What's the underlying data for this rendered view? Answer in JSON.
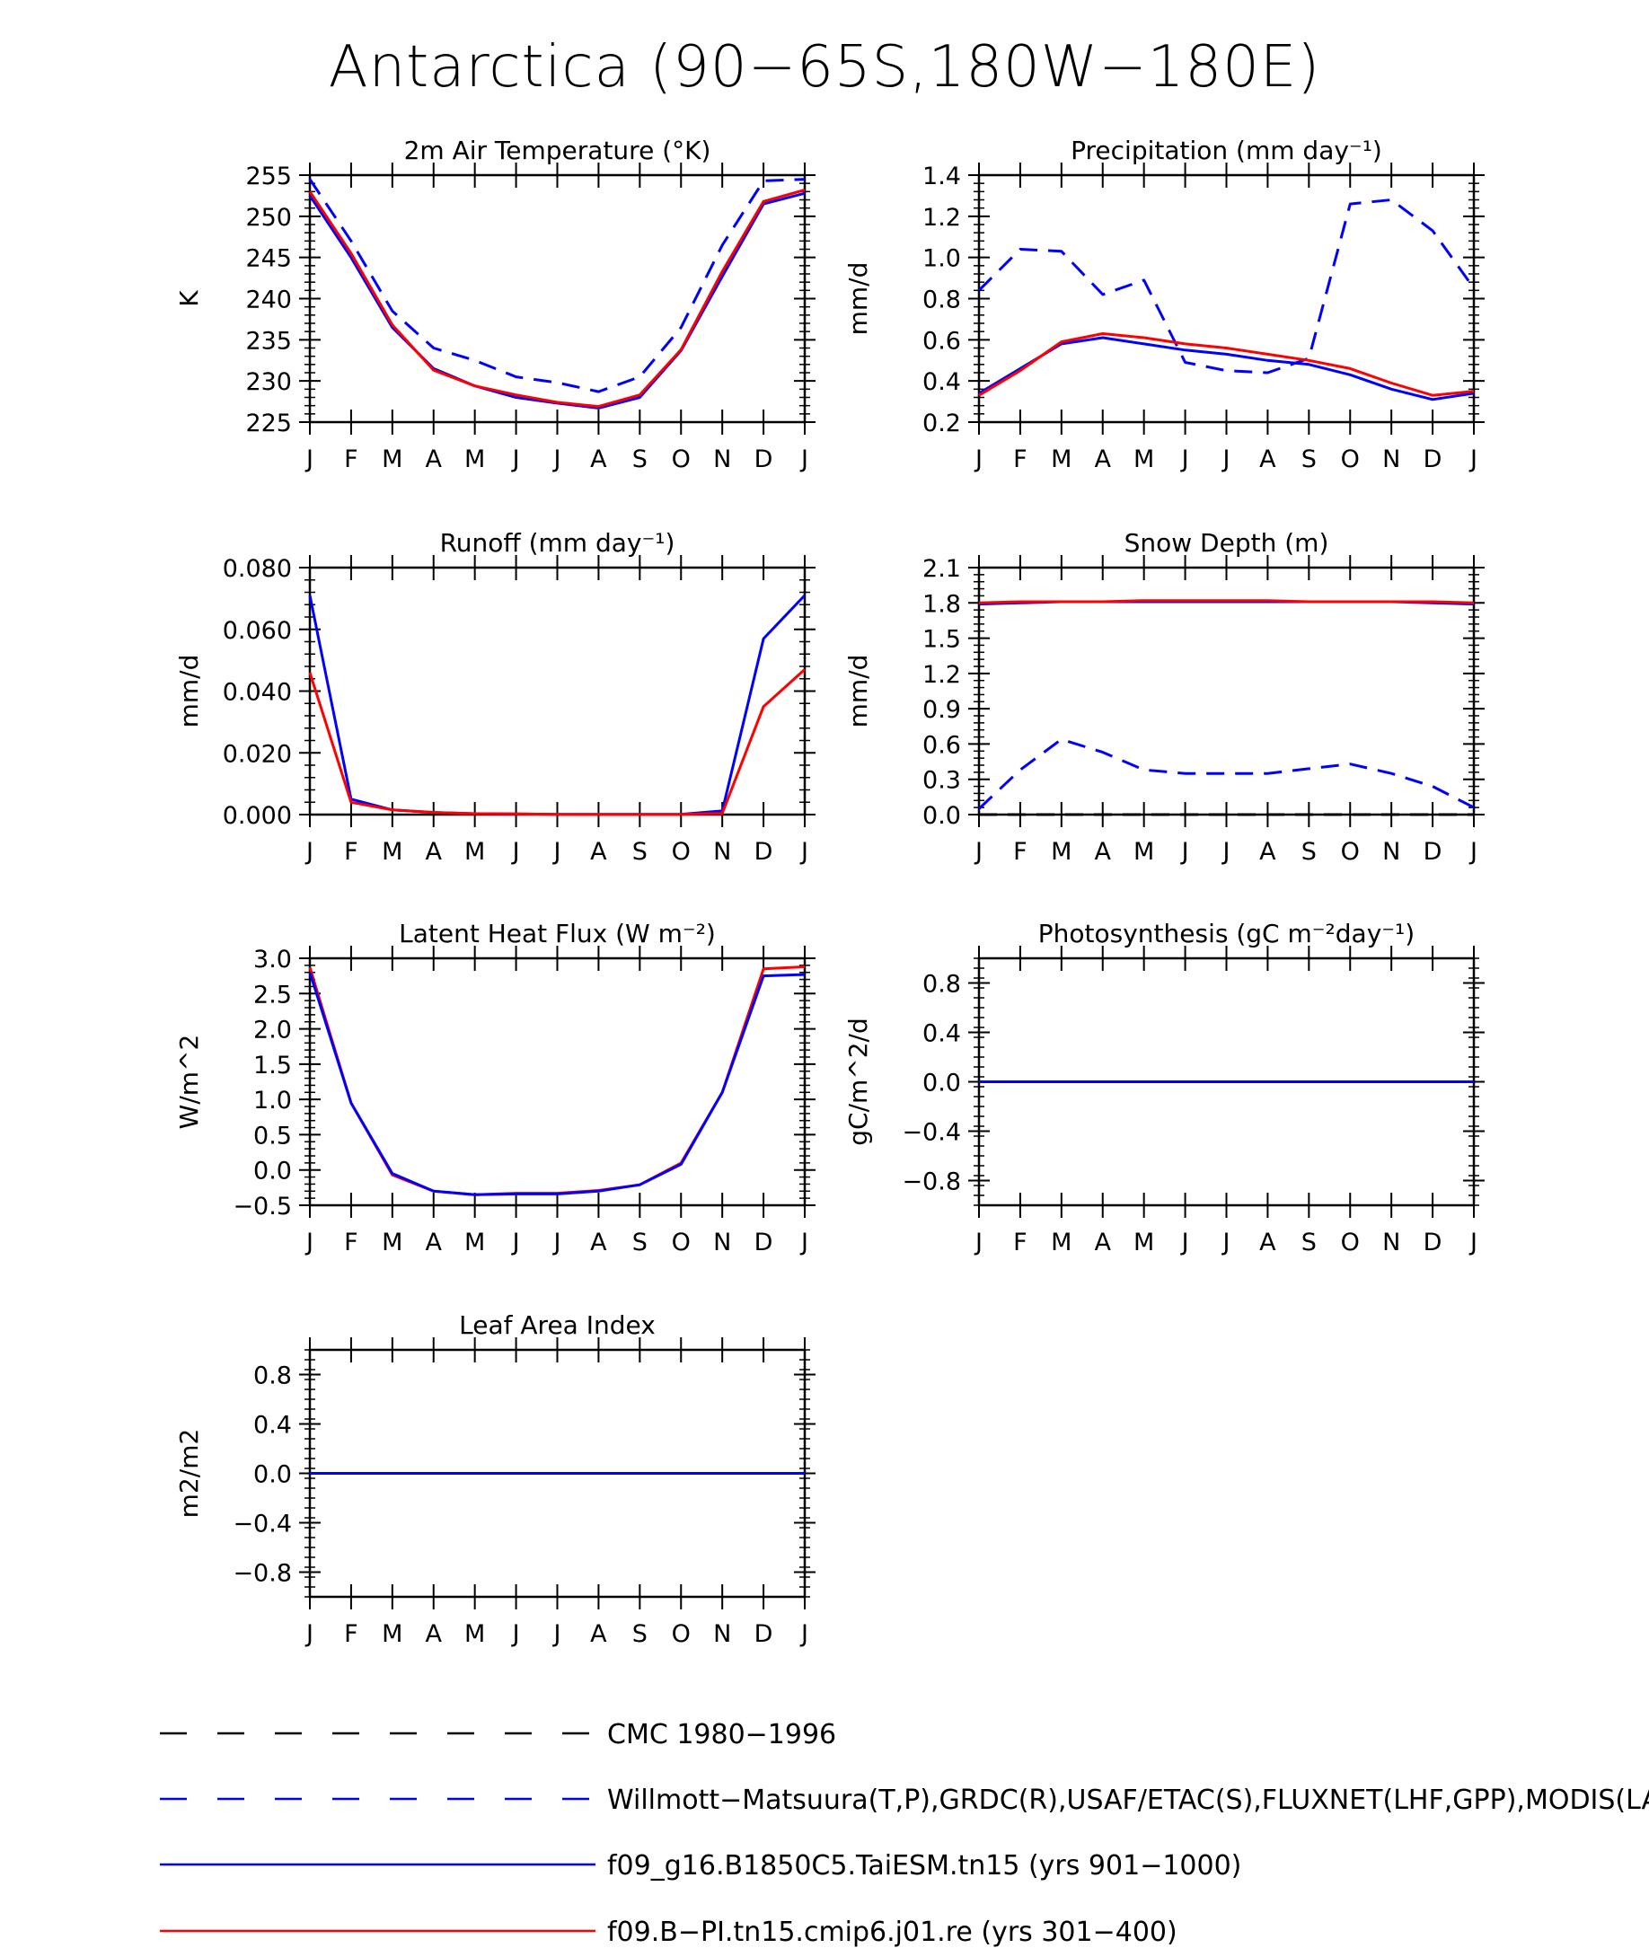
{
  "title": "Antarctica (90−65S,180W−180E)",
  "months": [
    "J",
    "F",
    "M",
    "A",
    "M",
    "J",
    "J",
    "A",
    "S",
    "O",
    "N",
    "D",
    "J"
  ],
  "colors": {
    "obs": "#0000ff",
    "model1": "#0000ff",
    "model2": "#ff0000",
    "cmc": "#000000"
  },
  "legend": [
    {
      "key": "cmc",
      "label": "CMC 1980−1996",
      "style": "dashed",
      "color": "#000000"
    },
    {
      "key": "obs",
      "label": "Willmott−Matsuura(T,P),GRDC(R),USAF/ETAC(S),FLUXNET(LHF,GPP),MODIS(LAI)",
      "style": "dashed",
      "color": "#0000ff"
    },
    {
      "key": "model1",
      "label": "f09_g16.B1850C5.TaiESM.tn15 (yrs 901−1000)",
      "style": "solid",
      "color": "#0000ff"
    },
    {
      "key": "model2",
      "label": "f09.B−PI.tn15.cmip6.j01.re (yrs 301−400)",
      "style": "solid",
      "color": "#ff0000"
    }
  ],
  "chart_data": [
    {
      "type": "line",
      "title": "2m Air Temperature (°K)",
      "ylabel": "K",
      "ylim": [
        225,
        255
      ],
      "yticks": [
        "225",
        "230",
        "235",
        "240",
        "245",
        "250",
        "255"
      ],
      "x": [
        "J",
        "F",
        "M",
        "A",
        "M",
        "J",
        "J",
        "A",
        "S",
        "O",
        "N",
        "D",
        "J"
      ],
      "series": [
        {
          "key": "obs",
          "style": "dashed",
          "values": [
            254.5,
            247.0,
            238.5,
            234.0,
            232.5,
            230.5,
            229.8,
            228.7,
            230.5,
            236.5,
            246.5,
            254.3,
            254.5
          ]
        },
        {
          "key": "model1",
          "style": "solid",
          "values": [
            252.5,
            245.0,
            236.5,
            231.5,
            229.4,
            228.0,
            227.3,
            226.7,
            228.0,
            233.7,
            242.7,
            251.5,
            252.8
          ]
        },
        {
          "key": "model2",
          "style": "solid",
          "values": [
            253.0,
            245.5,
            236.8,
            231.3,
            229.4,
            228.3,
            227.4,
            226.9,
            228.3,
            233.8,
            243.3,
            251.8,
            253.2
          ]
        }
      ]
    },
    {
      "type": "line",
      "title": "Precipitation (mm day⁻¹)",
      "ylabel": "mm/d",
      "ylim": [
        0.2,
        1.4
      ],
      "yticks": [
        "0.2",
        "0.4",
        "0.6",
        "0.8",
        "1.0",
        "1.2",
        "1.4"
      ],
      "x": [
        "J",
        "F",
        "M",
        "A",
        "M",
        "J",
        "J",
        "A",
        "S",
        "O",
        "N",
        "D",
        "J"
      ],
      "series": [
        {
          "key": "obs",
          "style": "dashed",
          "values": [
            0.84,
            1.04,
            1.03,
            0.82,
            0.89,
            0.49,
            0.45,
            0.44,
            0.51,
            1.26,
            1.28,
            1.13,
            0.85
          ]
        },
        {
          "key": "model1",
          "style": "solid",
          "values": [
            0.34,
            0.46,
            0.58,
            0.61,
            0.58,
            0.55,
            0.53,
            0.5,
            0.48,
            0.43,
            0.36,
            0.31,
            0.34
          ]
        },
        {
          "key": "model2",
          "style": "solid",
          "values": [
            0.33,
            0.45,
            0.59,
            0.63,
            0.61,
            0.58,
            0.56,
            0.53,
            0.5,
            0.46,
            0.39,
            0.33,
            0.35
          ]
        }
      ]
    },
    {
      "type": "line",
      "title": "Runoff (mm day⁻¹)",
      "ylabel": "mm/d",
      "ylim": [
        0,
        0.08
      ],
      "yticks": [
        "0.000",
        "0.020",
        "0.040",
        "0.060",
        "0.080"
      ],
      "x": [
        "J",
        "F",
        "M",
        "A",
        "M",
        "J",
        "J",
        "A",
        "S",
        "O",
        "N",
        "D",
        "J"
      ],
      "series": [
        {
          "key": "model1",
          "style": "solid",
          "values": [
            0.071,
            0.005,
            0.0015,
            0.0007,
            0.0003,
            0.0002,
            0.0001,
            0.0001,
            0.0001,
            0.0001,
            0.0012,
            0.057,
            0.071
          ]
        },
        {
          "key": "model2",
          "style": "solid",
          "values": [
            0.046,
            0.004,
            0.0015,
            0.0007,
            0.0003,
            0.0002,
            0.0001,
            0.0001,
            0.0001,
            0.0001,
            0.0004,
            0.035,
            0.047
          ]
        }
      ]
    },
    {
      "type": "line",
      "title": "Snow Depth (m)",
      "ylabel": "mm/d",
      "ylim": [
        0,
        2.1
      ],
      "yticks": [
        "0.0",
        "0.3",
        "0.6",
        "0.9",
        "1.2",
        "1.5",
        "1.8",
        "2.1"
      ],
      "x": [
        "J",
        "F",
        "M",
        "A",
        "M",
        "J",
        "J",
        "A",
        "S",
        "O",
        "N",
        "D",
        "J"
      ],
      "series": [
        {
          "key": "cmc",
          "style": "dashed",
          "values": [
            0.0,
            0.0,
            0.0,
            0.0,
            0.0,
            0.0,
            0.0,
            0.0,
            0.0,
            0.0,
            0.0,
            0.0,
            0.0
          ]
        },
        {
          "key": "obs",
          "style": "dashed",
          "values": [
            0.05,
            0.38,
            0.64,
            0.53,
            0.38,
            0.35,
            0.35,
            0.35,
            0.39,
            0.43,
            0.35,
            0.24,
            0.06
          ]
        },
        {
          "key": "model1",
          "style": "solid",
          "values": [
            1.79,
            1.8,
            1.81,
            1.81,
            1.81,
            1.81,
            1.81,
            1.81,
            1.81,
            1.81,
            1.81,
            1.8,
            1.79
          ]
        },
        {
          "key": "model2",
          "style": "solid",
          "values": [
            1.8,
            1.81,
            1.81,
            1.81,
            1.82,
            1.82,
            1.82,
            1.82,
            1.81,
            1.81,
            1.81,
            1.81,
            1.8
          ]
        }
      ]
    },
    {
      "type": "line",
      "title": "Latent Heat Flux (W m⁻²)",
      "ylabel": "W/m^2",
      "ylim": [
        -0.5,
        3.0
      ],
      "yticks": [
        "−0.5",
        "0.0",
        "0.5",
        "1.0",
        "1.5",
        "2.0",
        "2.5",
        "3.0"
      ],
      "x": [
        "J",
        "F",
        "M",
        "A",
        "M",
        "J",
        "J",
        "A",
        "S",
        "O",
        "N",
        "D",
        "J"
      ],
      "series": [
        {
          "key": "model2",
          "style": "solid",
          "values": [
            2.87,
            0.95,
            -0.07,
            -0.3,
            -0.35,
            -0.33,
            -0.33,
            -0.29,
            -0.21,
            0.1,
            1.1,
            2.85,
            2.88
          ]
        },
        {
          "key": "model1",
          "style": "solid",
          "values": [
            2.8,
            0.95,
            -0.05,
            -0.3,
            -0.35,
            -0.34,
            -0.34,
            -0.3,
            -0.21,
            0.08,
            1.1,
            2.75,
            2.77
          ]
        }
      ]
    },
    {
      "type": "line",
      "title": "Photosynthesis (gC m⁻²day⁻¹)",
      "ylabel": "gC/m^2/d",
      "ylim": [
        -1.0,
        1.0
      ],
      "yticks": [
        "−0.8",
        "−0.4",
        "0.0",
        "0.4",
        "0.8"
      ],
      "x": [
        "J",
        "F",
        "M",
        "A",
        "M",
        "J",
        "J",
        "A",
        "S",
        "O",
        "N",
        "D",
        "J"
      ],
      "series": [
        {
          "key": "model2",
          "style": "solid",
          "values": [
            0,
            0,
            0,
            0,
            0,
            0,
            0,
            0,
            0,
            0,
            0,
            0,
            0
          ]
        },
        {
          "key": "model1",
          "style": "solid",
          "values": [
            0,
            0,
            0,
            0,
            0,
            0,
            0,
            0,
            0,
            0,
            0,
            0,
            0
          ]
        }
      ]
    },
    {
      "type": "line",
      "title": "Leaf Area Index",
      "ylabel": "m2/m2",
      "ylim": [
        -1.0,
        1.0
      ],
      "yticks": [
        "−0.8",
        "−0.4",
        "0.0",
        "0.4",
        "0.8"
      ],
      "x": [
        "J",
        "F",
        "M",
        "A",
        "M",
        "J",
        "J",
        "A",
        "S",
        "O",
        "N",
        "D",
        "J"
      ],
      "series": [
        {
          "key": "model2",
          "style": "solid",
          "values": [
            0,
            0,
            0,
            0,
            0,
            0,
            0,
            0,
            0,
            0,
            0,
            0,
            0
          ]
        },
        {
          "key": "model1",
          "style": "solid",
          "values": [
            0,
            0,
            0,
            0,
            0,
            0,
            0,
            0,
            0,
            0,
            0,
            0,
            0
          ]
        }
      ]
    }
  ]
}
